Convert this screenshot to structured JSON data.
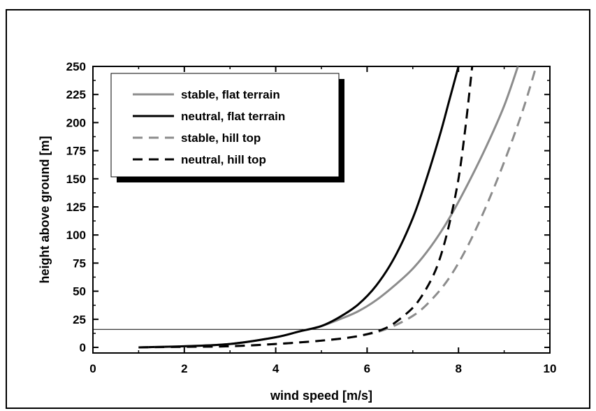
{
  "chart_data": {
    "type": "line",
    "title": "",
    "xlabel": "wind speed [m/s]",
    "ylabel": "height above ground [m]",
    "xlim": [
      0,
      10
    ],
    "ylim": [
      -5,
      250
    ],
    "xticks": [
      0,
      2,
      4,
      6,
      8,
      10
    ],
    "yticks": [
      0,
      25,
      50,
      75,
      100,
      125,
      150,
      175,
      200,
      225,
      250
    ],
    "grid": false,
    "legend_placement": "top-left",
    "reference_line": {
      "y": 16
    },
    "series": [
      {
        "name": "stable, flat terrain",
        "color": "#8c8c8c",
        "dash": "solid",
        "x": [
          1.0,
          2.0,
          3.0,
          4.0,
          4.5,
          5.0,
          5.4,
          5.8,
          6.2,
          6.6,
          7.0,
          7.4,
          7.8,
          8.2,
          8.6,
          9.0,
          9.3
        ],
        "y": [
          0,
          1,
          3,
          9,
          14,
          19,
          25,
          32,
          42,
          55,
          70,
          90,
          115,
          145,
          178,
          215,
          250
        ]
      },
      {
        "name": "neutral, flat terrain",
        "color": "#000000",
        "dash": "solid",
        "x": [
          1.0,
          2.0,
          3.0,
          4.0,
          4.5,
          5.0,
          5.4,
          5.8,
          6.2,
          6.6,
          7.0,
          7.3,
          7.6,
          7.8,
          8.0
        ],
        "y": [
          0,
          1,
          3,
          9,
          14,
          19,
          27,
          38,
          55,
          80,
          115,
          150,
          190,
          220,
          250
        ]
      },
      {
        "name": "stable, hill top",
        "color": "#8c8c8c",
        "dash": "dashed",
        "x": [
          1.0,
          2.0,
          3.0,
          4.0,
          5.0,
          5.8,
          6.4,
          7.0,
          7.4,
          7.8,
          8.2,
          8.6,
          9.0,
          9.4,
          9.7
        ],
        "y": [
          0,
          0.5,
          1,
          3,
          6,
          10,
          16,
          28,
          42,
          62,
          90,
          125,
          165,
          210,
          250
        ]
      },
      {
        "name": "neutral, hill top",
        "color": "#000000",
        "dash": "dashed",
        "x": [
          1.0,
          2.0,
          3.0,
          4.0,
          5.0,
          5.8,
          6.4,
          6.8,
          7.1,
          7.4,
          7.6,
          7.8,
          8.0,
          8.15,
          8.3
        ],
        "y": [
          0,
          0.5,
          1,
          3,
          6,
          10,
          17,
          28,
          40,
          60,
          80,
          110,
          150,
          195,
          250
        ]
      }
    ]
  }
}
